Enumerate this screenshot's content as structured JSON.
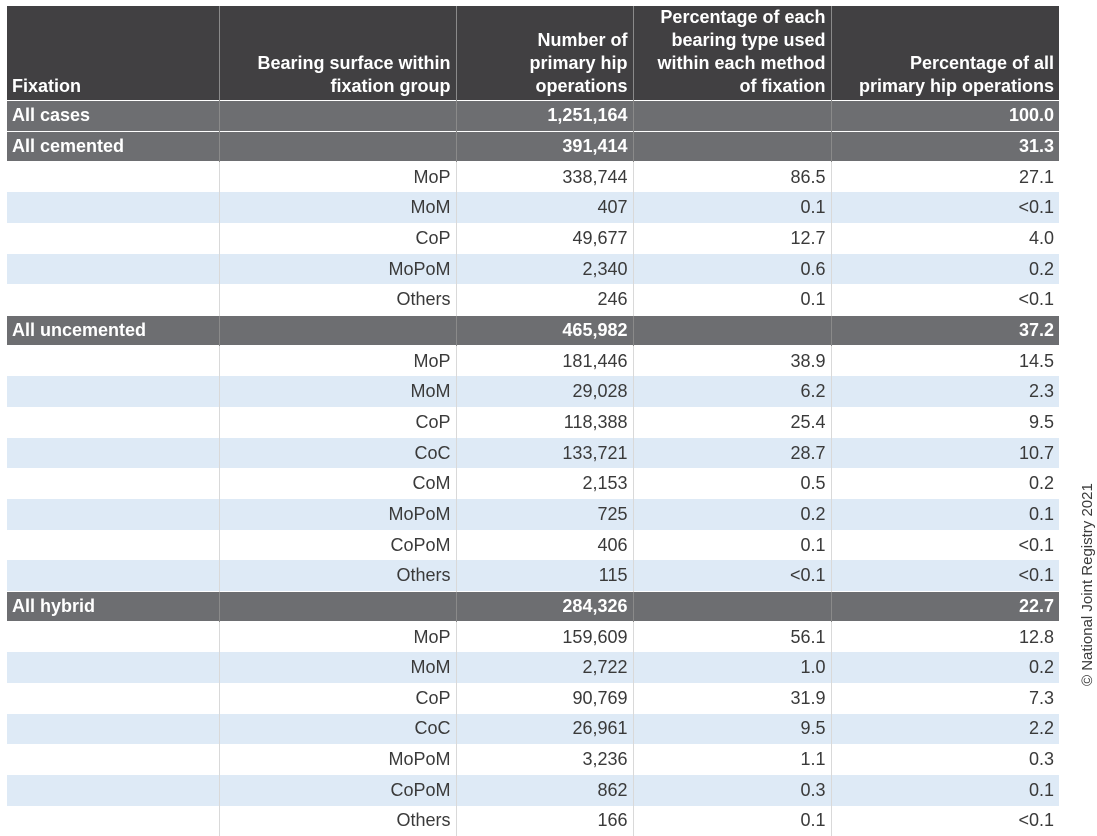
{
  "header": {
    "fixation": "Fixation",
    "bearing_surface": [
      "Bearing surface within",
      "fixation group"
    ],
    "num_ops": [
      "Number of",
      "primary hip",
      "operations"
    ],
    "pct_within": [
      "Percentage of each",
      "bearing type used",
      "within each method",
      "of fixation"
    ],
    "pct_all": [
      "Percentage of all",
      "primary hip operations"
    ]
  },
  "rows": [
    {
      "type": "group",
      "fixation": "All cases",
      "count": "1,251,164",
      "pct_within": "",
      "pct_all": "100.0"
    },
    {
      "type": "group",
      "fixation": "All cemented",
      "count": "391,414",
      "pct_within": "",
      "pct_all": "31.3"
    },
    {
      "type": "sub",
      "bearing": "MoP",
      "count": "338,744",
      "pct_within": "86.5",
      "pct_all": "27.1"
    },
    {
      "type": "sub",
      "bearing": "MoM",
      "count": "407",
      "pct_within": "0.1",
      "pct_all": "<0.1"
    },
    {
      "type": "sub",
      "bearing": "CoP",
      "count": "49,677",
      "pct_within": "12.7",
      "pct_all": "4.0"
    },
    {
      "type": "sub",
      "bearing": "MoPoM",
      "count": "2,340",
      "pct_within": "0.6",
      "pct_all": "0.2"
    },
    {
      "type": "sub",
      "bearing": "Others",
      "count": "246",
      "pct_within": "0.1",
      "pct_all": "<0.1"
    },
    {
      "type": "group",
      "fixation": "All uncemented",
      "count": "465,982",
      "pct_within": "",
      "pct_all": "37.2"
    },
    {
      "type": "sub",
      "bearing": "MoP",
      "count": "181,446",
      "pct_within": "38.9",
      "pct_all": "14.5"
    },
    {
      "type": "sub",
      "bearing": "MoM",
      "count": "29,028",
      "pct_within": "6.2",
      "pct_all": "2.3"
    },
    {
      "type": "sub",
      "bearing": "CoP",
      "count": "118,388",
      "pct_within": "25.4",
      "pct_all": "9.5"
    },
    {
      "type": "sub",
      "bearing": "CoC",
      "count": "133,721",
      "pct_within": "28.7",
      "pct_all": "10.7"
    },
    {
      "type": "sub",
      "bearing": "CoM",
      "count": "2,153",
      "pct_within": "0.5",
      "pct_all": "0.2"
    },
    {
      "type": "sub",
      "bearing": "MoPoM",
      "count": "725",
      "pct_within": "0.2",
      "pct_all": "0.1"
    },
    {
      "type": "sub",
      "bearing": "CoPoM",
      "count": "406",
      "pct_within": "0.1",
      "pct_all": "<0.1"
    },
    {
      "type": "sub",
      "bearing": "Others",
      "count": "115",
      "pct_within": "<0.1",
      "pct_all": "<0.1"
    },
    {
      "type": "group",
      "fixation": "All hybrid",
      "count": "284,326",
      "pct_within": "",
      "pct_all": "22.7"
    },
    {
      "type": "sub",
      "bearing": "MoP",
      "count": "159,609",
      "pct_within": "56.1",
      "pct_all": "12.8"
    },
    {
      "type": "sub",
      "bearing": "MoM",
      "count": "2,722",
      "pct_within": "1.0",
      "pct_all": "0.2"
    },
    {
      "type": "sub",
      "bearing": "CoP",
      "count": "90,769",
      "pct_within": "31.9",
      "pct_all": "7.3"
    },
    {
      "type": "sub",
      "bearing": "CoC",
      "count": "26,961",
      "pct_within": "9.5",
      "pct_all": "2.2"
    },
    {
      "type": "sub",
      "bearing": "MoPoM",
      "count": "3,236",
      "pct_within": "1.1",
      "pct_all": "0.3"
    },
    {
      "type": "sub",
      "bearing": "CoPoM",
      "count": "862",
      "pct_within": "0.3",
      "pct_all": "0.1"
    },
    {
      "type": "sub",
      "bearing": "Others",
      "count": "166",
      "pct_within": "0.1",
      "pct_all": "<0.1"
    }
  ],
  "copyright": "© National Joint Registry 2021",
  "colors": {
    "header_bg": "#414042",
    "group_row_bg": "#6d6e71",
    "alt_row_bg": "#deeaf6"
  }
}
